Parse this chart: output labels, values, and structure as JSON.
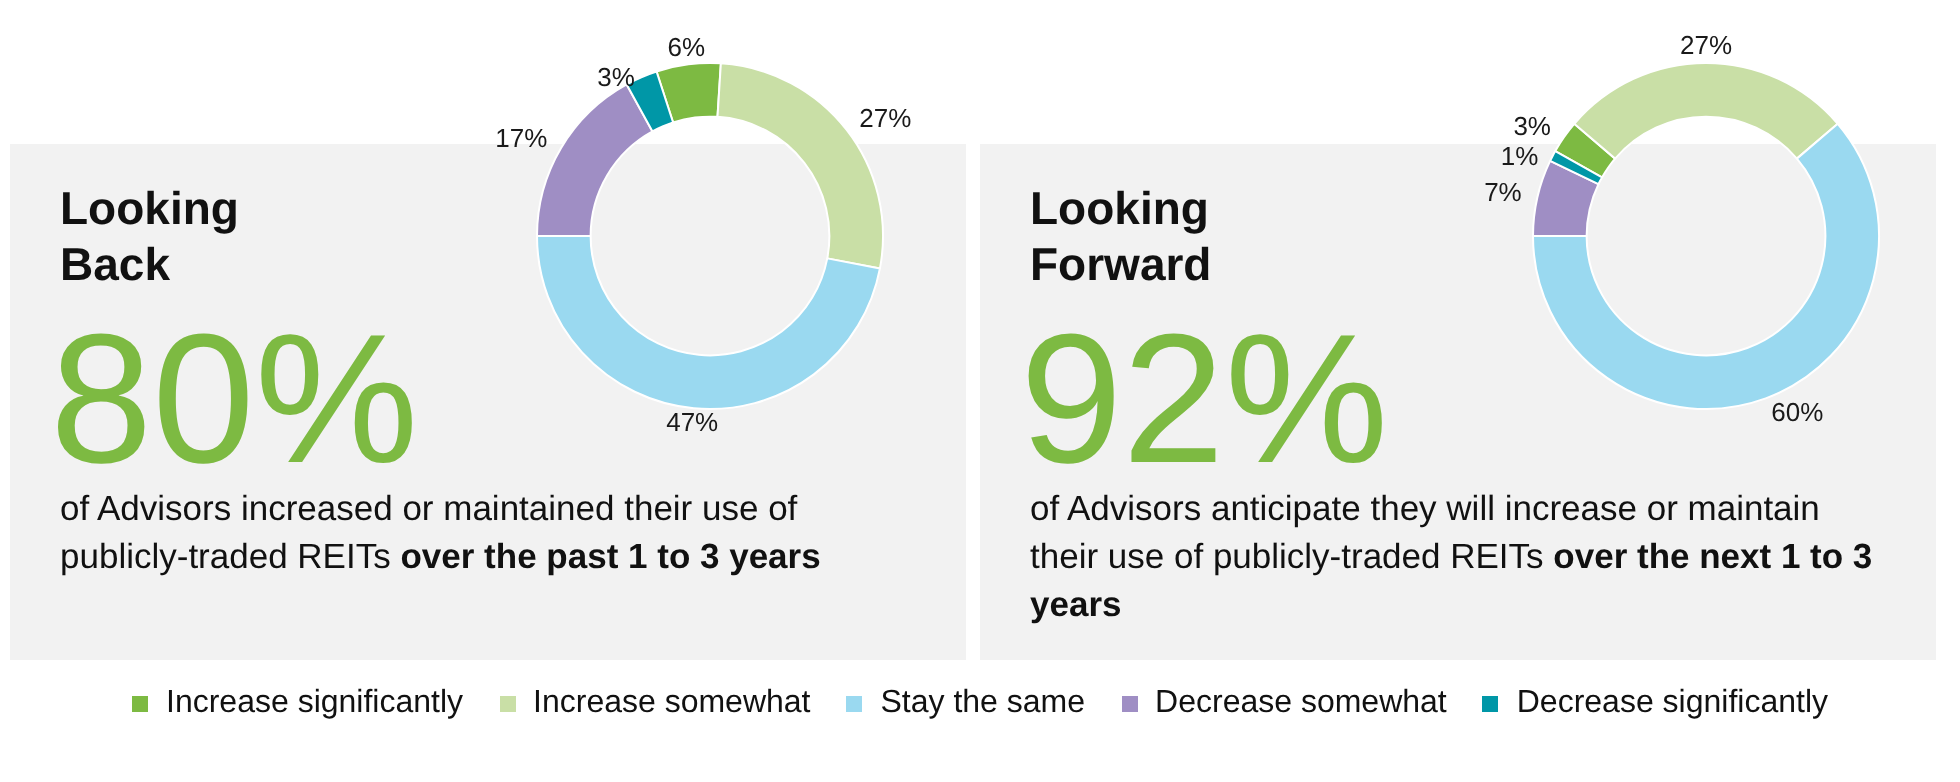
{
  "chart_data": [
    {
      "type": "donut",
      "title": "Looking Back",
      "subtitle": "80%",
      "annotations": [
        "of Advisors increased or maintained their use of publicly-traded REITs",
        "over the past 1 to 3 years"
      ],
      "categories": [
        "Increase significantly",
        "Increase somewhat",
        "Stay the same",
        "Decrease somewhat",
        "Decrease significantly"
      ],
      "values": [
        6,
        27,
        47,
        17,
        3
      ],
      "value_labels": [
        "6%",
        "27%",
        "47%",
        "17%",
        "3%"
      ],
      "colors": [
        "#7dba42",
        "#c9dfa6",
        "#9ad9f0",
        "#9f8ec4",
        "#0097a7"
      ],
      "legend": "bottom"
    },
    {
      "type": "donut",
      "title": "Looking Forward",
      "subtitle": "92%",
      "annotations": [
        "of Advisors anticipate they will increase or maintain their use of publicly-traded REITs",
        "over the next 1 to 3 years"
      ],
      "categories": [
        null,
        null,
        null,
        null,
        null
      ],
      "values": [
        3,
        27,
        60,
        7,
        1
      ],
      "value_labels": [
        "3%",
        "27%",
        "60%",
        "7%",
        "1%"
      ],
      "colors": [
        "#7dba42",
        "#c9dfa6",
        "#9ad9f0",
        "#9f8ec4",
        "#0097a7"
      ]
    }
  ]
}
